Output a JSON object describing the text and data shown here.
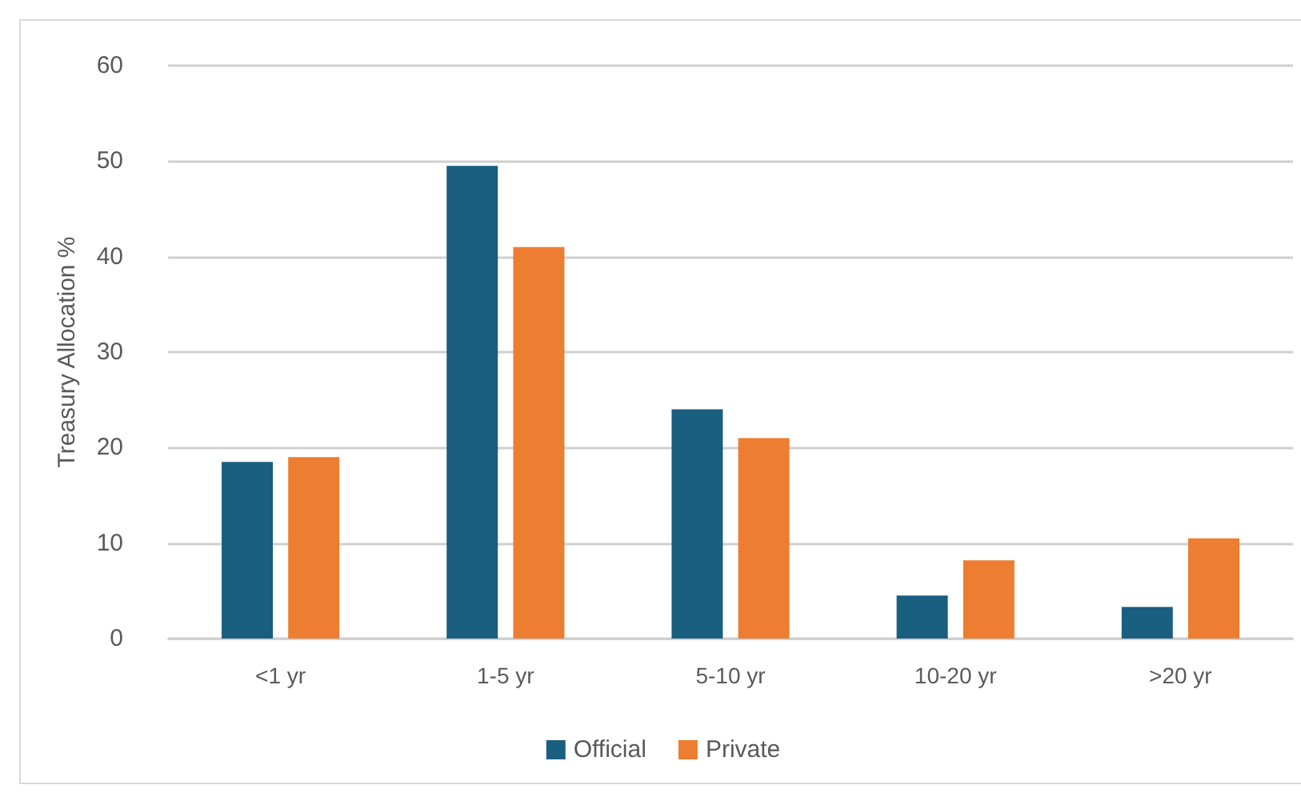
{
  "chart_data": {
    "type": "bar",
    "ylabel": "Treasury Allocation %",
    "categories": [
      "<1 yr",
      "1-5 yr",
      "5-10 yr",
      "10-20 yr",
      ">20 yr"
    ],
    "series": [
      {
        "name": "Official",
        "color": "#1a5e80",
        "values": [
          18.5,
          49.5,
          24,
          4.5,
          3.3
        ]
      },
      {
        "name": "Private",
        "color": "#ed7d31",
        "values": [
          19,
          41,
          21,
          8.2,
          10.5
        ]
      }
    ],
    "ylim": [
      0,
      60
    ],
    "yticks": [
      0,
      10,
      20,
      30,
      40,
      50,
      60
    ],
    "grid": "y",
    "legend": "bottom"
  }
}
